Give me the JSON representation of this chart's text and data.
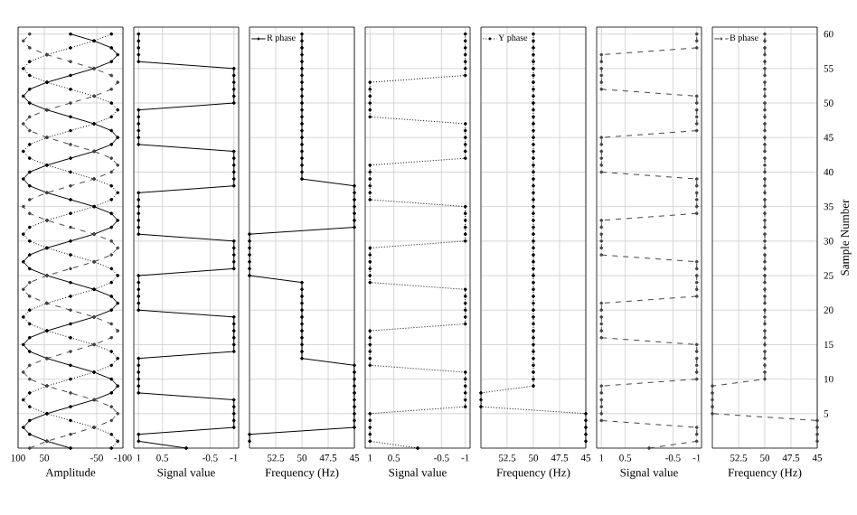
{
  "chart_data": [
    {
      "type": "line",
      "xlabel": "Amplitude",
      "xlim": [
        100,
        -100
      ],
      "xticks": [
        100,
        50,
        -50,
        -100
      ],
      "ylim": [
        0,
        61
      ],
      "yticks": [
        5,
        10,
        15,
        20,
        25,
        30,
        35,
        40,
        45,
        50,
        55,
        60
      ],
      "grid": true,
      "marker": "circle",
      "tick_labels": "x",
      "series": [
        {
          "color": "#000000",
          "line_style": "solid",
          "x": [
            0,
            45,
            78,
            90,
            78,
            45,
            0,
            -45,
            -78,
            -90,
            -78,
            -45,
            0,
            45,
            78,
            90,
            78,
            45,
            0,
            -45,
            -78,
            -90,
            -78,
            -45,
            0,
            45,
            78,
            90,
            78,
            45,
            0,
            -45,
            -78,
            -90,
            -78,
            -45,
            0,
            45,
            78,
            90,
            78,
            45,
            0,
            -45,
            -78,
            -90,
            -78,
            -45,
            0,
            45,
            78,
            90,
            78,
            45,
            0,
            -45,
            -78,
            -90,
            -78,
            -45,
            0
          ],
          "values": [
            0,
            1,
            2,
            3,
            4,
            5,
            6,
            7,
            8,
            9,
            10,
            11,
            12,
            13,
            14,
            15,
            16,
            17,
            18,
            19,
            20,
            21,
            22,
            23,
            24,
            25,
            26,
            27,
            28,
            29,
            30,
            31,
            32,
            33,
            34,
            35,
            36,
            37,
            38,
            39,
            40,
            41,
            42,
            43,
            44,
            45,
            46,
            47,
            48,
            49,
            50,
            51,
            52,
            53,
            54,
            55,
            56,
            57,
            58,
            59,
            60
          ]
        },
        {
          "color": "#000000",
          "line_style": "dotted",
          "x": [
            -78,
            -90,
            -78,
            -45,
            0,
            45,
            78,
            90,
            78,
            45,
            0,
            -45,
            -78,
            -90,
            -78,
            -45,
            0,
            45,
            78,
            90,
            78,
            45,
            0,
            -45,
            -78,
            -90,
            -78,
            -45,
            0,
            45,
            78,
            90,
            78,
            45,
            0,
            -45,
            -78,
            -90,
            -78,
            -45,
            0,
            45,
            78,
            90,
            78,
            45,
            0,
            -45,
            -78,
            -90,
            -78,
            -45,
            0,
            45,
            78,
            90,
            78,
            45,
            0,
            -45,
            -78
          ],
          "values": [
            0,
            1,
            2,
            3,
            4,
            5,
            6,
            7,
            8,
            9,
            10,
            11,
            12,
            13,
            14,
            15,
            16,
            17,
            18,
            19,
            20,
            21,
            22,
            23,
            24,
            25,
            26,
            27,
            28,
            29,
            30,
            31,
            32,
            33,
            34,
            35,
            36,
            37,
            38,
            39,
            40,
            41,
            42,
            43,
            44,
            45,
            46,
            47,
            48,
            49,
            50,
            51,
            52,
            53,
            54,
            55,
            56,
            57,
            58,
            59,
            60
          ]
        },
        {
          "color": "#444444",
          "line_style": "dashed",
          "x": [
            78,
            45,
            0,
            -45,
            -78,
            -90,
            -78,
            -45,
            0,
            45,
            78,
            90,
            78,
            45,
            0,
            -45,
            -78,
            -90,
            -78,
            -45,
            0,
            45,
            78,
            90,
            78,
            45,
            0,
            -45,
            -78,
            -90,
            -78,
            -45,
            0,
            45,
            78,
            90,
            78,
            45,
            0,
            -45,
            -78,
            -90,
            -78,
            -45,
            0,
            45,
            78,
            90,
            78,
            45,
            0,
            -45,
            -78,
            -90,
            -78,
            -45,
            0,
            45,
            78,
            90,
            78
          ],
          "values": [
            0,
            1,
            2,
            3,
            4,
            5,
            6,
            7,
            8,
            9,
            10,
            11,
            12,
            13,
            14,
            15,
            16,
            17,
            18,
            19,
            20,
            21,
            22,
            23,
            24,
            25,
            26,
            27,
            28,
            29,
            30,
            31,
            32,
            33,
            34,
            35,
            36,
            37,
            38,
            39,
            40,
            41,
            42,
            43,
            44,
            45,
            46,
            47,
            48,
            49,
            50,
            51,
            52,
            53,
            54,
            55,
            56,
            57,
            58,
            59,
            60
          ]
        }
      ]
    },
    {
      "type": "line",
      "xlabel": "Signal value",
      "xlim": [
        1.1,
        -1.1
      ],
      "xticks": [
        1,
        0.5,
        -0.5,
        -1
      ],
      "ylim": [
        0,
        61
      ],
      "yticks": [
        5,
        10,
        15,
        20,
        25,
        30,
        35,
        40,
        45,
        50,
        55,
        60
      ],
      "grid": true,
      "marker": "circle",
      "tick_labels": "x",
      "series": [
        {
          "color": "#000000",
          "line_style": "solid",
          "x": [
            0,
            1,
            1,
            -1,
            -1,
            -1,
            -1,
            -1,
            1,
            1,
            1,
            1,
            1,
            1,
            -1,
            -1,
            -1,
            -1,
            -1,
            -1,
            1,
            1,
            1,
            1,
            1,
            1,
            -1,
            -1,
            -1,
            -1,
            -1,
            1,
            1,
            1,
            1,
            1,
            1,
            1,
            -1,
            -1,
            -1,
            -1,
            -1,
            -1,
            1,
            1,
            1,
            1,
            1,
            1,
            -1,
            -1,
            -1,
            -1,
            -1,
            -1,
            1,
            1,
            1,
            1,
            1
          ],
          "values": [
            0,
            1,
            2,
            3,
            4,
            5,
            6,
            7,
            8,
            9,
            10,
            11,
            12,
            13,
            14,
            15,
            16,
            17,
            18,
            19,
            20,
            21,
            22,
            23,
            24,
            25,
            26,
            27,
            28,
            29,
            30,
            31,
            32,
            33,
            34,
            35,
            36,
            37,
            38,
            39,
            40,
            41,
            42,
            43,
            44,
            45,
            46,
            47,
            48,
            49,
            50,
            51,
            52,
            53,
            54,
            55,
            56,
            57,
            58,
            59,
            60
          ]
        }
      ]
    },
    {
      "type": "line",
      "xlabel": "Frequency (Hz)",
      "xlim": [
        55,
        45
      ],
      "xticks": [
        52.5,
        50,
        47.5,
        45
      ],
      "ylim": [
        0,
        61
      ],
      "yticks": [
        5,
        10,
        15,
        20,
        25,
        30,
        35,
        40,
        45,
        50,
        55,
        60
      ],
      "grid": true,
      "marker": "circle",
      "tick_labels": "x",
      "legend": "top left",
      "series": [
        {
          "name": "R phase",
          "color": "#000000",
          "line_style": "solid",
          "x": [
            55,
            55,
            45,
            45,
            45,
            45,
            45,
            45,
            45,
            45,
            45,
            45,
            50,
            50,
            50,
            50,
            50,
            50,
            50,
            50,
            50,
            50,
            50,
            50,
            55,
            55,
            55,
            55,
            55,
            55,
            55,
            45,
            45,
            45,
            45,
            45,
            45,
            45,
            50,
            50,
            50,
            50,
            50,
            50,
            50,
            50,
            50,
            50,
            50,
            50,
            50,
            50,
            50,
            50,
            50,
            50,
            50,
            50,
            50,
            50
          ],
          "values": [
            1,
            2,
            3,
            4,
            5,
            6,
            7,
            8,
            9,
            10,
            11,
            12,
            13,
            14,
            15,
            16,
            17,
            18,
            19,
            20,
            21,
            22,
            23,
            24,
            25,
            26,
            27,
            28,
            29,
            30,
            31,
            32,
            33,
            34,
            35,
            36,
            37,
            38,
            39,
            40,
            41,
            42,
            43,
            44,
            45,
            46,
            47,
            48,
            49,
            50,
            51,
            52,
            53,
            54,
            55,
            56,
            57,
            58,
            59,
            60
          ]
        }
      ]
    },
    {
      "type": "line",
      "xlabel": "Signal value",
      "xlim": [
        1.1,
        -1.1
      ],
      "xticks": [
        1,
        0.5,
        -0.5,
        -1
      ],
      "ylim": [
        0,
        61
      ],
      "yticks": [
        5,
        10,
        15,
        20,
        25,
        30,
        35,
        40,
        45,
        50,
        55,
        60
      ],
      "grid": true,
      "marker": "circle",
      "tick_labels": "x",
      "series": [
        {
          "color": "#000000",
          "line_style": "dotted",
          "x": [
            0,
            1,
            1,
            1,
            1,
            1,
            -1,
            -1,
            -1,
            -1,
            -1,
            -1,
            1,
            1,
            1,
            1,
            1,
            1,
            -1,
            -1,
            -1,
            -1,
            -1,
            -1,
            1,
            1,
            1,
            1,
            1,
            1,
            -1,
            -1,
            -1,
            -1,
            -1,
            -1,
            1,
            1,
            1,
            1,
            1,
            1,
            -1,
            -1,
            -1,
            -1,
            -1,
            -1,
            1,
            1,
            1,
            1,
            1,
            1,
            -1,
            -1,
            -1,
            -1,
            -1,
            -1,
            -1
          ],
          "values": [
            0,
            1,
            2,
            3,
            4,
            5,
            6,
            7,
            8,
            9,
            10,
            11,
            12,
            13,
            14,
            15,
            16,
            17,
            18,
            19,
            20,
            21,
            22,
            23,
            24,
            25,
            26,
            27,
            28,
            29,
            30,
            31,
            32,
            33,
            34,
            35,
            36,
            37,
            38,
            39,
            40,
            41,
            42,
            43,
            44,
            45,
            46,
            47,
            48,
            49,
            50,
            51,
            52,
            53,
            54,
            55,
            56,
            57,
            58,
            59,
            60
          ]
        }
      ]
    },
    {
      "type": "line",
      "xlabel": "Frequency (Hz)",
      "xlim": [
        55,
        45
      ],
      "xticks": [
        52.5,
        50,
        47.5,
        45
      ],
      "ylim": [
        0,
        61
      ],
      "yticks": [
        5,
        10,
        15,
        20,
        25,
        30,
        35,
        40,
        45,
        50,
        55,
        60
      ],
      "grid": true,
      "marker": "circle",
      "tick_labels": "x",
      "legend": "top left",
      "series": [
        {
          "name": "Y phase",
          "color": "#000000",
          "line_style": "dotted",
          "x": [
            45,
            45,
            45,
            45,
            45,
            55,
            55,
            55,
            50,
            50,
            50,
            50,
            50,
            50,
            50,
            50,
            50,
            50,
            50,
            50,
            50,
            50,
            50,
            50,
            50,
            50,
            50,
            50,
            50,
            50,
            50,
            50,
            50,
            50,
            50,
            50,
            50,
            50,
            50,
            50,
            50,
            50,
            50,
            50,
            50,
            50,
            50,
            50,
            50,
            50,
            50,
            50,
            50,
            50,
            50,
            50,
            50,
            50,
            50,
            50
          ],
          "values": [
            1,
            2,
            3,
            4,
            5,
            6,
            7,
            8,
            9,
            10,
            11,
            12,
            13,
            14,
            15,
            16,
            17,
            18,
            19,
            20,
            21,
            22,
            23,
            24,
            25,
            26,
            27,
            28,
            29,
            30,
            31,
            32,
            33,
            34,
            35,
            36,
            37,
            38,
            39,
            40,
            41,
            42,
            43,
            44,
            45,
            46,
            47,
            48,
            49,
            50,
            51,
            52,
            53,
            54,
            55,
            56,
            57,
            58,
            59,
            60
          ]
        }
      ]
    },
    {
      "type": "line",
      "xlabel": "Signal value",
      "xlim": [
        1.1,
        -1.1
      ],
      "xticks": [
        1,
        0.5,
        -0.5,
        -1
      ],
      "ylim": [
        0,
        61
      ],
      "yticks": [
        5,
        10,
        15,
        20,
        25,
        30,
        35,
        40,
        45,
        50,
        55,
        60
      ],
      "grid": true,
      "marker": "circle",
      "tick_labels": "x",
      "series": [
        {
          "color": "#444444",
          "line_style": "dashed",
          "x": [
            0,
            -1,
            -1,
            -1,
            1,
            1,
            1,
            1,
            1,
            1,
            -1,
            -1,
            -1,
            -1,
            -1,
            -1,
            1,
            1,
            1,
            1,
            1,
            1,
            -1,
            -1,
            -1,
            -1,
            -1,
            -1,
            1,
            1,
            1,
            1,
            1,
            1,
            -1,
            -1,
            -1,
            -1,
            -1,
            -1,
            1,
            1,
            1,
            1,
            1,
            1,
            -1,
            -1,
            -1,
            -1,
            -1,
            -1,
            1,
            1,
            1,
            1,
            1,
            1,
            -1,
            -1,
            -1
          ],
          "values": [
            0,
            1,
            2,
            3,
            4,
            5,
            6,
            7,
            8,
            9,
            10,
            11,
            12,
            13,
            14,
            15,
            16,
            17,
            18,
            19,
            20,
            21,
            22,
            23,
            24,
            25,
            26,
            27,
            28,
            29,
            30,
            31,
            32,
            33,
            34,
            35,
            36,
            37,
            38,
            39,
            40,
            41,
            42,
            43,
            44,
            45,
            46,
            47,
            48,
            49,
            50,
            51,
            52,
            53,
            54,
            55,
            56,
            57,
            58,
            59,
            60
          ]
        }
      ]
    },
    {
      "type": "line",
      "xlabel": "Frequency (Hz)",
      "ylabel": "Sample Number",
      "xlim": [
        55,
        45
      ],
      "xticks": [
        52.5,
        50,
        47.5,
        45
      ],
      "ylim": [
        0,
        61
      ],
      "yticks": [
        5,
        10,
        15,
        20,
        25,
        30,
        35,
        40,
        45,
        50,
        55,
        60
      ],
      "grid": true,
      "marker": "circle",
      "legend": "top left",
      "series": [
        {
          "name": "B phase",
          "color": "#444444",
          "line_style": "dashed",
          "x": [
            45,
            45,
            45,
            45,
            55,
            55,
            55,
            55,
            55,
            50,
            50,
            50,
            50,
            50,
            50,
            50,
            50,
            50,
            50,
            50,
            50,
            50,
            50,
            50,
            50,
            50,
            50,
            50,
            50,
            50,
            50,
            50,
            50,
            50,
            50,
            50,
            50,
            50,
            50,
            50,
            50,
            50,
            50,
            50,
            50,
            50,
            50,
            50,
            50,
            50,
            50,
            50,
            50,
            50,
            50,
            50,
            50,
            50,
            50,
            50
          ],
          "values": [
            1,
            2,
            3,
            4,
            5,
            6,
            7,
            8,
            9,
            10,
            11,
            12,
            13,
            14,
            15,
            16,
            17,
            18,
            19,
            20,
            21,
            22,
            23,
            24,
            25,
            26,
            27,
            28,
            29,
            30,
            31,
            32,
            33,
            34,
            35,
            36,
            37,
            38,
            39,
            40,
            41,
            42,
            43,
            44,
            45,
            46,
            47,
            48,
            49,
            50,
            51,
            52,
            53,
            54,
            55,
            56,
            57,
            58,
            59,
            60
          ]
        }
      ]
    }
  ]
}
